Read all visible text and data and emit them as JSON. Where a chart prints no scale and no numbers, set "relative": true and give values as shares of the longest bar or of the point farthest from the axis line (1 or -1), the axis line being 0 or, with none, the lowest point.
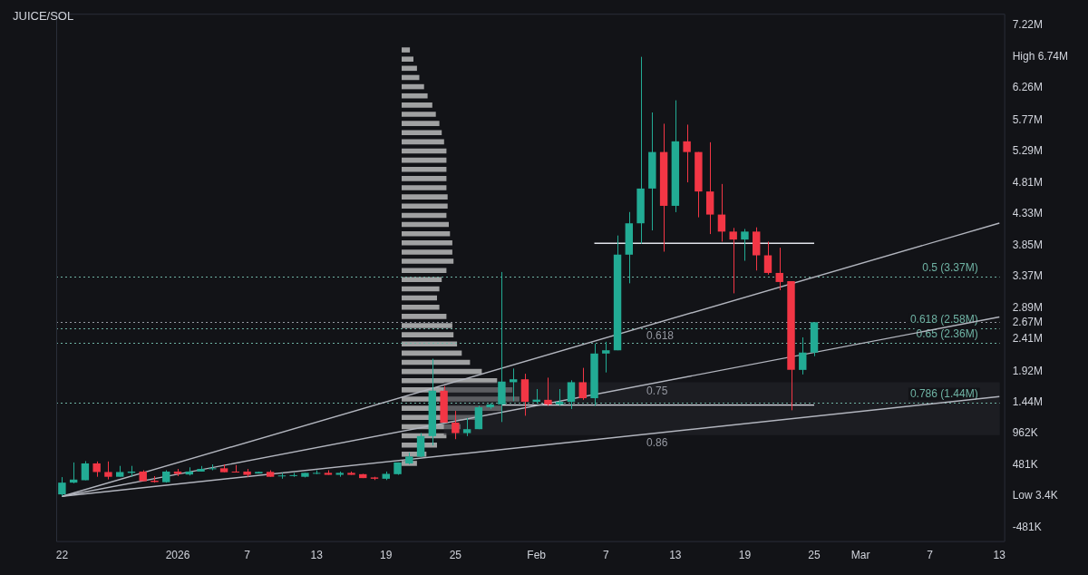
{
  "chart_data": [
    {
      "type": "candlestick",
      "title": "JUICE/SOL",
      "categories": [
        "22",
        null,
        null,
        null,
        null,
        null,
        null,
        null,
        null,
        null,
        "2026",
        null,
        null,
        null,
        null,
        null,
        "7",
        null,
        null,
        null,
        null,
        null,
        "13",
        null,
        null,
        null,
        null,
        null,
        "19",
        null,
        null,
        null,
        null,
        null,
        "25",
        null,
        null,
        null,
        null,
        null,
        null,
        "Feb",
        null,
        null,
        null,
        null,
        null,
        "7",
        null,
        null,
        null,
        null,
        null,
        "13",
        null,
        null,
        null,
        null,
        null,
        "19",
        null,
        null,
        null,
        null,
        null,
        "25",
        null,
        null,
        null,
        "Mar",
        null,
        null,
        null,
        null,
        null,
        "7",
        null,
        null,
        null,
        null,
        null,
        "13"
      ],
      "ohlc": [
        [
          30000,
          295000,
          3400,
          210000
        ],
        [
          210000,
          520000,
          200000,
          257000
        ],
        [
          247000,
          540000,
          247000,
          505000
        ],
        [
          505000,
          535000,
          300000,
          373000
        ],
        [
          373000,
          535000,
          260000,
          300000
        ],
        [
          300000,
          467000,
          300000,
          373000
        ],
        [
          360000,
          467000,
          300000,
          380000
        ],
        [
          380000,
          400000,
          233000,
          233000
        ],
        [
          240000,
          310000,
          210000,
          220000
        ],
        [
          217000,
          400000,
          210000,
          380000
        ],
        [
          380000,
          420000,
          310000,
          345000
        ],
        [
          335000,
          445000,
          320000,
          380000
        ],
        [
          380000,
          465000,
          380000,
          420000
        ],
        [
          420000,
          490000,
          400000,
          430000
        ],
        [
          430000,
          490000,
          370000,
          370000
        ],
        [
          380000,
          480000,
          370000,
          370000
        ],
        [
          380000,
          420000,
          300000,
          330000
        ],
        [
          350000,
          380000,
          350000,
          375000
        ],
        [
          375000,
          400000,
          300000,
          300000
        ],
        [
          310000,
          360000,
          270000,
          320000
        ],
        [
          320000,
          360000,
          300000,
          325000
        ],
        [
          300000,
          360000,
          290000,
          360000
        ],
        [
          355000,
          400000,
          340000,
          360000
        ],
        [
          360000,
          400000,
          330000,
          330000
        ],
        [
          330000,
          380000,
          300000,
          360000
        ],
        [
          360000,
          380000,
          330000,
          330000
        ],
        [
          340000,
          345000,
          280000,
          280000
        ],
        [
          290000,
          300000,
          250000,
          270000
        ],
        [
          270000,
          380000,
          250000,
          345000
        ],
        [
          340000,
          520000,
          330000,
          520000
        ],
        [
          505000,
          667000,
          490000,
          610000
        ],
        [
          610000,
          970000,
          600000,
          924000
        ],
        [
          924000,
          2110000,
          780000,
          1620000
        ],
        [
          1620000,
          1690000,
          1130000,
          1130000
        ],
        [
          1130000,
          1310000,
          877000,
          970000
        ],
        [
          970000,
          1200000,
          924000,
          1030000
        ],
        [
          1030000,
          1390000,
          1030000,
          1366000
        ],
        [
          1366000,
          1430000,
          1340000,
          1410000
        ],
        [
          1410000,
          3440000,
          1140000,
          1760000
        ],
        [
          1750000,
          1960000,
          1460000,
          1795000
        ],
        [
          1795000,
          1880000,
          1236000,
          1450000
        ],
        [
          1450000,
          1645000,
          1420000,
          1483000
        ],
        [
          1480000,
          1820000,
          1390000,
          1410000
        ],
        [
          1410000,
          1645000,
          1390000,
          1450000
        ],
        [
          1450000,
          1780000,
          1340000,
          1750000
        ],
        [
          1750000,
          1970000,
          1480000,
          1505000
        ],
        [
          1505000,
          2340000,
          1390000,
          2190000
        ],
        [
          2190000,
          2370000,
          1900000,
          2240000
        ],
        [
          2240000,
          4000000,
          2240000,
          3706000
        ],
        [
          3706000,
          4360000,
          3267000,
          4187000
        ],
        [
          4187000,
          6740000,
          3874000,
          4720000
        ],
        [
          4720000,
          5887000,
          4078000,
          5280000
        ],
        [
          5280000,
          5714000,
          3752000,
          4455000
        ],
        [
          4455000,
          6073000,
          4358000,
          5444000
        ],
        [
          5444000,
          5700000,
          4815000,
          5280000
        ],
        [
          5280000,
          5280000,
          4279000,
          4675000
        ],
        [
          4675000,
          5430000,
          4022000,
          4321000
        ],
        [
          4321000,
          4790000,
          3906000,
          4060000
        ],
        [
          4060000,
          4116000,
          3113000,
          3938000
        ],
        [
          3938000,
          4100000,
          3612000,
          4060000
        ],
        [
          4060000,
          4125000,
          3463000,
          3696000
        ],
        [
          3696000,
          3906000,
          3400000,
          3426000
        ],
        [
          3426000,
          3812000,
          3161000,
          3287000
        ],
        [
          3300000,
          3300000,
          1320000,
          1939000
        ],
        [
          1939000,
          2438000,
          1869000,
          2205000
        ],
        [
          2205000,
          2670000,
          2149000,
          2670000
        ],
        null,
        null,
        null,
        null,
        null,
        null,
        null,
        null,
        null,
        null,
        null,
        null,
        null,
        null,
        null,
        null
      ],
      "colors": [
        "#22ab94",
        "#22ab94",
        "#22ab94",
        "#f23645",
        "#f23645",
        "#22ab94",
        "#22ab94",
        "#f23645",
        "#f23645",
        "#22ab94",
        "#f23645",
        "#22ab94",
        "#22ab94",
        "#22ab94",
        "#f23645",
        "#f23645",
        "#f23645",
        "#22ab94",
        "#f23645",
        "#22ab94",
        "#22ab94",
        "#22ab94",
        "#22ab94",
        "#f23645",
        "#22ab94",
        "#f23645",
        "#f23645",
        "#f23645",
        "#22ab94",
        "#22ab94",
        "#22ab94",
        "#22ab94",
        "#22ab94",
        "#f23645",
        "#f23645",
        "#22ab94",
        "#22ab94",
        "#22ab94",
        "#22ab94",
        "#22ab94",
        "#f23645",
        "#22ab94",
        "#f23645",
        "#22ab94",
        "#22ab94",
        "#f23645",
        "#22ab94",
        "#22ab94",
        "#22ab94",
        "#22ab94",
        "#22ab94",
        "#22ab94",
        "#f23645",
        "#22ab94",
        "#f23645",
        "#f23645",
        "#f23645",
        "#f23645",
        "#f23645",
        "#22ab94",
        "#f23645",
        "#f23645",
        "#f23645",
        "#f23645",
        "#22ab94",
        "#22ab94",
        null,
        null,
        null,
        null,
        null,
        null,
        null,
        null,
        null,
        null,
        null,
        null,
        null,
        null,
        null,
        null
      ],
      "series": [
        {
          "type": "line",
          "color": "#b2b5be",
          "values": [
            0,
            null,
            null,
            null,
            null,
            null,
            null,
            null,
            null,
            null,
            null,
            null,
            null,
            null,
            null,
            null,
            null,
            null,
            null,
            null,
            null,
            null,
            null,
            null,
            null,
            null,
            null,
            null,
            null,
            null,
            null,
            null,
            null,
            null,
            null,
            null,
            null,
            null,
            null,
            null,
            null,
            null,
            null,
            null,
            null,
            null,
            null,
            null,
            null,
            null,
            null,
            null,
            null,
            null,
            null,
            null,
            null,
            null,
            null,
            null,
            null,
            null,
            null,
            null,
            null,
            null,
            null,
            null,
            null,
            null,
            null,
            null,
            null,
            null,
            null,
            null,
            null,
            null,
            null,
            null,
            null,
            4190000
          ]
        },
        {
          "type": "line",
          "color": "#b2b5be",
          "values": [
            0,
            null,
            null,
            null,
            null,
            null,
            null,
            null,
            null,
            null,
            null,
            null,
            null,
            null,
            null,
            null,
            null,
            null,
            null,
            null,
            null,
            null,
            null,
            null,
            null,
            null,
            null,
            null,
            null,
            null,
            null,
            null,
            null,
            null,
            null,
            null,
            null,
            null,
            null,
            null,
            null,
            null,
            null,
            null,
            null,
            null,
            null,
            null,
            null,
            null,
            null,
            null,
            null,
            null,
            null,
            null,
            null,
            null,
            null,
            null,
            null,
            null,
            null,
            null,
            null,
            null,
            null,
            null,
            null,
            null,
            null,
            null,
            null,
            null,
            null,
            null,
            null,
            null,
            null,
            null,
            null,
            2750000
          ]
        },
        {
          "type": "line",
          "color": "#b2b5be",
          "values": [
            0,
            null,
            null,
            null,
            null,
            null,
            null,
            null,
            null,
            null,
            null,
            null,
            null,
            null,
            null,
            null,
            null,
            null,
            null,
            null,
            null,
            null,
            null,
            null,
            null,
            null,
            null,
            null,
            null,
            null,
            null,
            null,
            null,
            null,
            null,
            null,
            null,
            null,
            null,
            null,
            null,
            null,
            null,
            null,
            null,
            null,
            null,
            null,
            null,
            null,
            null,
            null,
            null,
            null,
            null,
            null,
            null,
            null,
            null,
            null,
            null,
            null,
            null,
            null,
            null,
            null,
            null,
            null,
            null,
            null,
            null,
            null,
            null,
            null,
            null,
            null,
            null,
            null,
            null,
            null,
            null,
            1530000
          ]
        },
        {
          "type": "line",
          "color": "#e0e3eb",
          "values": [
            null,
            null,
            null,
            null,
            null,
            null,
            null,
            null,
            null,
            null,
            null,
            null,
            null,
            null,
            null,
            null,
            null,
            null,
            null,
            null,
            null,
            null,
            null,
            null,
            null,
            null,
            null,
            null,
            null,
            null,
            null,
            null,
            null,
            null,
            null,
            null,
            null,
            null,
            null,
            null,
            null,
            null,
            null,
            null,
            null,
            null,
            3880000,
            null,
            null,
            null,
            null,
            null,
            null,
            null,
            null,
            null,
            null,
            null,
            null,
            null,
            null,
            null,
            null,
            null,
            null,
            3880000,
            null,
            null,
            null,
            null,
            null,
            null,
            null,
            null,
            null,
            null,
            null,
            null,
            null,
            null,
            null,
            null
          ]
        },
        {
          "type": "line",
          "color": "#e0e3eb",
          "values": [
            null,
            null,
            null,
            null,
            null,
            null,
            null,
            null,
            null,
            null,
            null,
            null,
            null,
            null,
            null,
            null,
            null,
            null,
            null,
            null,
            null,
            null,
            null,
            null,
            null,
            null,
            null,
            null,
            null,
            null,
            null,
            null,
            null,
            null,
            null,
            null,
            null,
            null,
            1400000,
            null,
            null,
            null,
            null,
            null,
            null,
            null,
            null,
            null,
            null,
            null,
            null,
            null,
            null,
            null,
            null,
            null,
            null,
            null,
            null,
            null,
            null,
            null,
            null,
            null,
            null,
            1400000,
            null,
            null,
            null,
            null,
            null,
            null,
            null,
            null,
            null,
            null,
            null,
            null,
            null,
            null,
            null,
            null
          ]
        }
      ],
      "ylim": [
        -700000,
        7400000
      ],
      "yticks": [
        {
          "value": -481000,
          "label": "-481K"
        },
        {
          "value": 3400,
          "label": "Low 3.4K"
        },
        {
          "value": 481000,
          "label": "481K"
        },
        {
          "value": 962000,
          "label": "962K"
        },
        {
          "value": 1440000,
          "label": "1.44M"
        },
        {
          "value": 1920000,
          "label": "1.92M"
        },
        {
          "value": 2410000,
          "label": "2.41M"
        },
        {
          "value": 2670000,
          "label": "2.67M"
        },
        {
          "value": 2890000,
          "label": "2.89M"
        },
        {
          "value": 3370000,
          "label": "3.37M"
        },
        {
          "value": 3850000,
          "label": "3.85M"
        },
        {
          "value": 4330000,
          "label": "4.33M"
        },
        {
          "value": 4810000,
          "label": "4.81M"
        },
        {
          "value": 5290000,
          "label": "5.29M"
        },
        {
          "value": 5770000,
          "label": "5.77M"
        },
        {
          "value": 6260000,
          "label": "6.26M"
        },
        {
          "value": 6740000,
          "label": "High 6.74M"
        },
        {
          "value": 7220000,
          "label": "7.22M"
        }
      ],
      "ref_lines": [
        {
          "axis": "y",
          "value": 3370000,
          "label": "0.5 (3.37M)",
          "color": "#6fb3a4",
          "line_style": "dotted"
        },
        {
          "axis": "y",
          "value": 2670000,
          "label": null,
          "color": "#9598a1",
          "line_style": "dotted"
        },
        {
          "axis": "y",
          "value": 2580000,
          "label": "0.618 (2.58M)",
          "color": "#6fb3a4",
          "line_style": "dotted"
        },
        {
          "axis": "y",
          "value": 2360000,
          "label": "0.65 (2.36M)",
          "color": "#6fb3a4",
          "line_style": "dotted"
        },
        {
          "axis": "y",
          "value": 1440000,
          "label": "0.786 (1.44M)",
          "color": "#6fb3a4",
          "line_style": "dotted"
        }
      ],
      "bands": [
        {
          "axis": "y",
          "from": 940000,
          "to": 1750000,
          "label": "0.75",
          "color": "#24262c"
        }
      ],
      "annotations": [
        {
          "text": "0.618",
          "y": 2580000
        },
        {
          "text": "0.86",
          "y": 940000
        }
      ],
      "grid": false,
      "legend": false
    },
    {
      "type": "bar",
      "orientation": "horizontal",
      "relative": true,
      "categories": [
        null,
        null,
        null,
        null,
        null,
        null,
        null,
        null,
        null,
        null,
        null,
        null,
        null,
        null,
        null,
        null,
        null,
        null,
        null,
        null,
        null,
        null,
        null,
        null,
        null,
        null,
        null,
        null,
        null,
        null,
        null,
        null,
        null,
        null,
        null,
        null,
        null,
        null,
        null,
        null,
        null,
        null,
        null,
        null,
        null,
        null
      ],
      "series": [
        {
          "color": "#c8c8c8",
          "values": [
            0.07,
            0.1,
            0.13,
            0.15,
            0.19,
            0.22,
            0.26,
            0.29,
            0.32,
            0.34,
            0.36,
            0.38,
            0.38,
            0.38,
            0.38,
            0.38,
            0.39,
            0.39,
            0.38,
            0.4,
            0.41,
            0.43,
            0.43,
            0.44,
            0.38,
            0.34,
            0.32,
            0.3,
            0.32,
            0.38,
            0.43,
            0.44,
            0.47,
            0.51,
            0.58,
            0.68,
            0.81,
            0.94,
            1,
            0.85,
            0.64,
            0.5,
            0.38,
            0.3,
            0.21,
            0.13
          ]
        }
      ],
      "grid": false,
      "legend": false
    }
  ]
}
